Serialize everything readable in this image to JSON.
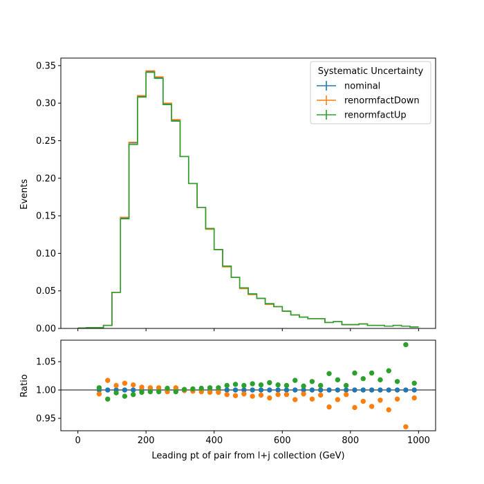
{
  "chart_data": [
    {
      "type": "line",
      "step": true,
      "xlabel": "",
      "ylabel": "Events",
      "xlim": [
        -50,
        1050
      ],
      "ylim": [
        0,
        0.36
      ],
      "yticks": [
        "0.00",
        "0.05",
        "0.10",
        "0.15",
        "0.20",
        "0.25",
        "0.30",
        "0.35"
      ],
      "ytick_values": [
        0,
        0.05,
        0.1,
        0.15,
        0.2,
        0.25,
        0.3,
        0.35
      ],
      "bin_edges": [
        0,
        25,
        50,
        75,
        100,
        125,
        150,
        175,
        200,
        225,
        250,
        275,
        300,
        325,
        350,
        375,
        400,
        425,
        450,
        475,
        500,
        525,
        550,
        575,
        600,
        625,
        650,
        675,
        700,
        725,
        750,
        775,
        800,
        825,
        850,
        875,
        900,
        925,
        950,
        975,
        1000
      ],
      "legend_title": "Systematic Uncertainty",
      "legend_position": "top-right",
      "series": [
        {
          "name": "nominal",
          "color": "#1f77b4",
          "values": [
            0.0005,
            0.001,
            0.001,
            0.004,
            0.048,
            0.147,
            0.247,
            0.309,
            0.342,
            0.334,
            0.299,
            0.277,
            0.229,
            0.193,
            0.161,
            0.133,
            0.105,
            0.083,
            0.068,
            0.054,
            0.046,
            0.04,
            0.033,
            0.029,
            0.023,
            0.018,
            0.015,
            0.013,
            0.013,
            0.008,
            0.009,
            0.005,
            0.005,
            0.006,
            0.004,
            0.004,
            0.003,
            0.004,
            0.003,
            0.002
          ]
        },
        {
          "name": "renormfactDown",
          "color": "#ff7f0e",
          "values": [
            0.0005,
            0.001,
            0.001,
            0.004,
            0.048,
            0.148,
            0.248,
            0.31,
            0.343,
            0.335,
            0.3,
            0.278,
            0.229,
            0.193,
            0.161,
            0.132,
            0.105,
            0.082,
            0.068,
            0.053,
            0.045,
            0.04,
            0.032,
            0.029,
            0.023,
            0.018,
            0.015,
            0.013,
            0.013,
            0.008,
            0.009,
            0.005,
            0.005,
            0.006,
            0.004,
            0.004,
            0.003,
            0.004,
            0.003,
            0.002
          ]
        },
        {
          "name": "renormfactUp",
          "color": "#2ca02c",
          "values": [
            0.0005,
            0.001,
            0.001,
            0.004,
            0.048,
            0.146,
            0.245,
            0.308,
            0.341,
            0.333,
            0.298,
            0.276,
            0.229,
            0.193,
            0.161,
            0.133,
            0.105,
            0.083,
            0.068,
            0.054,
            0.046,
            0.04,
            0.033,
            0.029,
            0.023,
            0.018,
            0.015,
            0.013,
            0.013,
            0.008,
            0.009,
            0.005,
            0.005,
            0.006,
            0.004,
            0.004,
            0.003,
            0.004,
            0.003,
            0.002
          ]
        }
      ]
    },
    {
      "type": "scatter",
      "xlabel": "Leading pt of pair from l+j collection (GeV)",
      "ylabel": "Ratio",
      "xlim": [
        -50,
        1050
      ],
      "ylim": [
        0.928,
        1.088
      ],
      "xticks": [
        "0",
        "200",
        "400",
        "600",
        "800",
        "1000"
      ],
      "xtick_values": [
        0,
        200,
        400,
        600,
        800,
        1000
      ],
      "yticks": [
        "0.95",
        "1.00",
        "1.05"
      ],
      "ytick_values": [
        0.95,
        1.0,
        1.05
      ],
      "reference_line": 1.0,
      "x": [
        62.5,
        87.5,
        112.5,
        137.5,
        162.5,
        187.5,
        212.5,
        237.5,
        262.5,
        287.5,
        312.5,
        337.5,
        362.5,
        387.5,
        412.5,
        437.5,
        462.5,
        487.5,
        512.5,
        537.5,
        562.5,
        587.5,
        612.5,
        637.5,
        662.5,
        687.5,
        712.5,
        737.5,
        762.5,
        787.5,
        812.5,
        837.5,
        862.5,
        887.5,
        912.5,
        937.5,
        962.5,
        987.5
      ],
      "series": [
        {
          "name": "nominal",
          "color": "#1f77b4",
          "values": [
            1.0,
            1.0,
            1.0,
            1.0,
            1.0,
            1.0,
            1.0,
            1.0,
            1.0,
            1.0,
            1.0,
            1.0,
            1.0,
            1.0,
            1.0,
            1.0,
            1.0,
            1.0,
            1.0,
            1.0,
            1.0,
            1.0,
            1.0,
            1.0,
            1.0,
            1.0,
            1.0,
            1.0,
            1.0,
            1.0,
            1.0,
            1.0,
            1.0,
            1.0,
            1.0,
            1.0,
            1.0,
            1.0
          ]
        },
        {
          "name": "renormfactDown",
          "color": "#ff7f0e",
          "values": [
            0.993,
            1.017,
            1.008,
            1.012,
            1.009,
            1.005,
            1.004,
            1.004,
            0.997,
            1.004,
            0.999,
            0.998,
            0.997,
            0.996,
            0.996,
            0.992,
            0.99,
            0.993,
            0.989,
            0.991,
            0.986,
            0.992,
            0.992,
            0.983,
            0.993,
            0.984,
            0.991,
            0.97,
            0.983,
            0.992,
            0.969,
            0.98,
            0.971,
            0.982,
            0.965,
            0.984,
            0.935,
            0.986
          ]
        },
        {
          "name": "renormfactUp",
          "color": "#2ca02c",
          "values": [
            1.004,
            0.984,
            0.995,
            0.989,
            0.992,
            0.996,
            0.997,
            0.997,
            1.003,
            0.997,
            1.001,
            1.002,
            1.003,
            1.004,
            1.004,
            1.008,
            1.01,
            1.008,
            1.011,
            1.009,
            1.013,
            1.009,
            1.008,
            1.017,
            1.007,
            1.015,
            1.008,
            1.029,
            1.018,
            1.008,
            1.03,
            1.02,
            1.03,
            1.018,
            1.034,
            1.015,
            1.08,
            1.012
          ]
        }
      ]
    }
  ]
}
